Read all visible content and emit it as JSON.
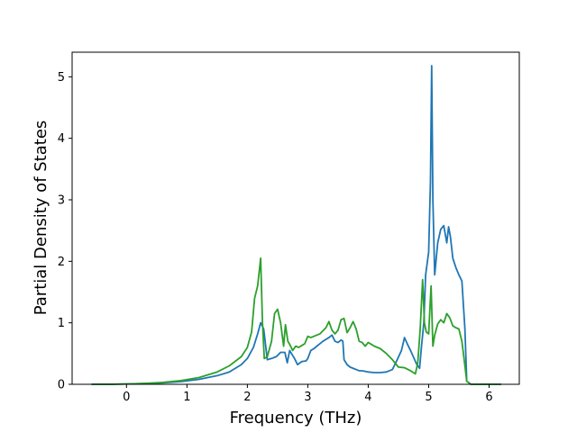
{
  "chart_data": {
    "type": "line",
    "title": "",
    "xlabel": "Frequency (THz)",
    "ylabel": "Partial Density of States",
    "xlim": [
      -0.9,
      6.5
    ],
    "ylim": [
      0,
      5.4
    ],
    "xticks": [
      0,
      1,
      2,
      3,
      4,
      5,
      6
    ],
    "yticks": [
      0,
      1,
      2,
      3,
      4,
      5
    ],
    "grid": false,
    "legend": "none",
    "series": [
      {
        "color": "#1f77b4",
        "x": [
          -0.58,
          -0.3,
          0,
          0.3,
          0.6,
          0.9,
          1.2,
          1.5,
          1.7,
          1.9,
          2.0,
          2.1,
          2.17,
          2.22,
          2.27,
          2.33,
          2.4,
          2.48,
          2.55,
          2.62,
          2.66,
          2.7,
          2.73,
          2.78,
          2.83,
          2.9,
          2.97,
          3.0,
          3.05,
          3.1,
          3.15,
          3.2,
          3.25,
          3.3,
          3.35,
          3.4,
          3.45,
          3.5,
          3.55,
          3.58,
          3.6,
          3.65,
          3.7,
          3.75,
          3.8,
          3.85,
          3.9,
          3.95,
          4.0,
          4.1,
          4.2,
          4.3,
          4.4,
          4.48,
          4.55,
          4.6,
          4.65,
          4.7,
          4.75,
          4.8,
          4.85,
          4.88,
          4.92,
          4.95,
          5.0,
          5.03,
          5.05,
          5.07,
          5.1,
          5.15,
          5.2,
          5.25,
          5.3,
          5.33,
          5.36,
          5.4,
          5.45,
          5.5,
          5.55,
          5.6,
          5.63,
          5.7,
          5.9,
          6.2
        ],
        "y": [
          0.0,
          0.0,
          0.005,
          0.012,
          0.025,
          0.045,
          0.08,
          0.14,
          0.2,
          0.32,
          0.42,
          0.6,
          0.82,
          1.0,
          0.9,
          0.4,
          0.42,
          0.45,
          0.52,
          0.52,
          0.35,
          0.55,
          0.5,
          0.42,
          0.32,
          0.37,
          0.38,
          0.42,
          0.55,
          0.58,
          0.62,
          0.66,
          0.7,
          0.73,
          0.76,
          0.8,
          0.7,
          0.68,
          0.72,
          0.7,
          0.4,
          0.32,
          0.28,
          0.26,
          0.24,
          0.22,
          0.22,
          0.21,
          0.2,
          0.19,
          0.19,
          0.2,
          0.24,
          0.4,
          0.55,
          0.76,
          0.65,
          0.55,
          0.44,
          0.33,
          0.26,
          0.6,
          1.0,
          1.78,
          2.15,
          3.3,
          5.18,
          3.0,
          1.78,
          2.3,
          2.52,
          2.58,
          2.3,
          2.56,
          2.4,
          2.05,
          1.9,
          1.78,
          1.68,
          0.9,
          0.05,
          0.0,
          0.0,
          0.0
        ]
      },
      {
        "color": "#2ca02c",
        "x": [
          -0.58,
          -0.3,
          0,
          0.3,
          0.6,
          0.9,
          1.2,
          1.5,
          1.7,
          1.9,
          2.0,
          2.07,
          2.12,
          2.17,
          2.22,
          2.25,
          2.28,
          2.33,
          2.4,
          2.45,
          2.5,
          2.55,
          2.6,
          2.63,
          2.67,
          2.7,
          2.75,
          2.8,
          2.85,
          2.9,
          2.95,
          3.0,
          3.05,
          3.1,
          3.2,
          3.3,
          3.35,
          3.4,
          3.45,
          3.5,
          3.55,
          3.6,
          3.65,
          3.7,
          3.75,
          3.8,
          3.85,
          3.9,
          3.95,
          4.0,
          4.05,
          4.1,
          4.2,
          4.3,
          4.4,
          4.5,
          4.6,
          4.7,
          4.78,
          4.82,
          4.86,
          4.9,
          4.93,
          4.96,
          5.0,
          5.04,
          5.07,
          5.1,
          5.15,
          5.2,
          5.25,
          5.3,
          5.35,
          5.4,
          5.45,
          5.5,
          5.55,
          5.6,
          5.63,
          5.7,
          5.9,
          6.2
        ],
        "y": [
          0.0,
          0.0,
          0.005,
          0.015,
          0.03,
          0.06,
          0.11,
          0.2,
          0.3,
          0.45,
          0.6,
          0.85,
          1.4,
          1.6,
          2.05,
          1.0,
          0.42,
          0.45,
          0.7,
          1.15,
          1.22,
          1.0,
          0.62,
          0.97,
          0.7,
          0.65,
          0.55,
          0.62,
          0.6,
          0.63,
          0.66,
          0.78,
          0.76,
          0.78,
          0.82,
          0.92,
          1.02,
          0.88,
          0.82,
          0.88,
          1.05,
          1.07,
          0.84,
          0.92,
          1.02,
          0.9,
          0.7,
          0.68,
          0.62,
          0.68,
          0.65,
          0.62,
          0.58,
          0.5,
          0.4,
          0.28,
          0.27,
          0.22,
          0.17,
          0.35,
          0.9,
          1.7,
          1.0,
          0.85,
          0.82,
          1.6,
          0.62,
          0.8,
          0.98,
          1.05,
          1.0,
          1.15,
          1.08,
          0.95,
          0.92,
          0.9,
          0.7,
          0.3,
          0.05,
          0.0,
          0.0,
          0.0
        ]
      }
    ]
  }
}
